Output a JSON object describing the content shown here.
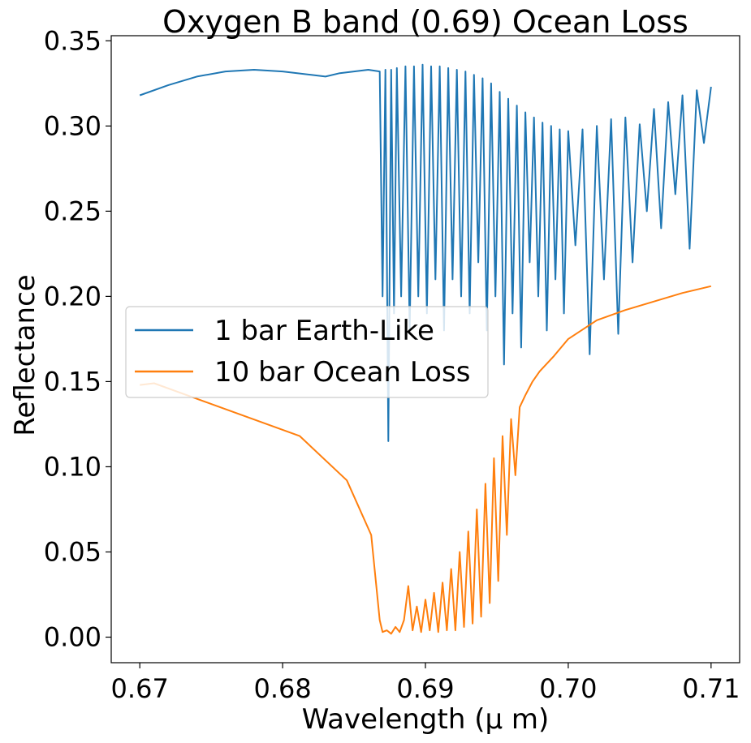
{
  "chart_data": {
    "type": "line",
    "title": "Oxygen B band (0.69) Ocean Loss",
    "xlabel": "Wavelength (μ m)",
    "ylabel": "Reflectance",
    "xlim": [
      0.668,
      0.712
    ],
    "ylim": [
      -0.015,
      0.353
    ],
    "xticks": [
      0.67,
      0.68,
      0.69,
      0.7,
      0.71
    ],
    "xtick_labels": [
      "0.67",
      "0.68",
      "0.69",
      "0.70",
      "0.71"
    ],
    "yticks": [
      0.0,
      0.05,
      0.1,
      0.15,
      0.2,
      0.25,
      0.3,
      0.35
    ],
    "ytick_labels": [
      "0.00",
      "0.05",
      "0.10",
      "0.15",
      "0.20",
      "0.25",
      "0.30",
      "0.35"
    ],
    "grid": false,
    "legend_position": "center-left",
    "series": [
      {
        "name": "1 bar Earth-Like",
        "color": "#1f77b4",
        "x": [
          0.67,
          0.672,
          0.674,
          0.676,
          0.678,
          0.68,
          0.682,
          0.683,
          0.684,
          0.685,
          0.686,
          0.6868,
          0.687,
          0.6872,
          0.6874,
          0.6876,
          0.6878,
          0.688,
          0.6883,
          0.6886,
          0.6889,
          0.6892,
          0.6895,
          0.6898,
          0.6901,
          0.6904,
          0.6907,
          0.691,
          0.6913,
          0.6916,
          0.6919,
          0.6922,
          0.6925,
          0.6928,
          0.6931,
          0.6934,
          0.6937,
          0.694,
          0.6943,
          0.6946,
          0.6949,
          0.6952,
          0.6955,
          0.6958,
          0.6961,
          0.6964,
          0.6967,
          0.697,
          0.6973,
          0.6976,
          0.6979,
          0.6982,
          0.6985,
          0.6988,
          0.6991,
          0.6994,
          0.6997,
          0.7,
          0.7005,
          0.701,
          0.7015,
          0.702,
          0.7025,
          0.703,
          0.7035,
          0.704,
          0.7045,
          0.705,
          0.7055,
          0.706,
          0.7065,
          0.707,
          0.7075,
          0.708,
          0.7085,
          0.709,
          0.7095,
          0.71
        ],
        "values": [
          0.318,
          0.324,
          0.329,
          0.332,
          0.333,
          0.332,
          0.33,
          0.329,
          0.331,
          0.332,
          0.333,
          0.332,
          0.2,
          0.333,
          0.115,
          0.333,
          0.19,
          0.334,
          0.2,
          0.335,
          0.18,
          0.335,
          0.2,
          0.336,
          0.19,
          0.335,
          0.21,
          0.335,
          0.18,
          0.334,
          0.21,
          0.333,
          0.2,
          0.332,
          0.19,
          0.33,
          0.22,
          0.328,
          0.18,
          0.325,
          0.2,
          0.32,
          0.16,
          0.316,
          0.19,
          0.312,
          0.17,
          0.308,
          0.22,
          0.305,
          0.2,
          0.302,
          0.18,
          0.3,
          0.21,
          0.298,
          0.19,
          0.297,
          0.23,
          0.298,
          0.166,
          0.3,
          0.21,
          0.304,
          0.178,
          0.305,
          0.22,
          0.301,
          0.25,
          0.31,
          0.24,
          0.314,
          0.26,
          0.318,
          0.228,
          0.321,
          0.29,
          0.323
        ]
      },
      {
        "name": "10 bar Ocean Loss",
        "color": "#ff7f0e",
        "x": [
          0.67,
          0.671,
          0.6812,
          0.6845,
          0.6862,
          0.6868,
          0.687,
          0.6873,
          0.6876,
          0.6879,
          0.6882,
          0.6885,
          0.6888,
          0.6891,
          0.6894,
          0.6897,
          0.69,
          0.6903,
          0.6906,
          0.6909,
          0.6912,
          0.6915,
          0.6918,
          0.6921,
          0.6924,
          0.6927,
          0.693,
          0.6933,
          0.6936,
          0.6939,
          0.6942,
          0.6945,
          0.6948,
          0.6951,
          0.6954,
          0.6957,
          0.696,
          0.6963,
          0.6966,
          0.697,
          0.6975,
          0.698,
          0.699,
          0.7,
          0.702,
          0.704,
          0.706,
          0.708,
          0.71
        ],
        "values": [
          0.148,
          0.149,
          0.118,
          0.092,
          0.06,
          0.01,
          0.003,
          0.004,
          0.002,
          0.006,
          0.003,
          0.01,
          0.03,
          0.004,
          0.018,
          0.003,
          0.022,
          0.004,
          0.026,
          0.003,
          0.032,
          0.004,
          0.04,
          0.004,
          0.05,
          0.006,
          0.062,
          0.008,
          0.075,
          0.012,
          0.09,
          0.02,
          0.105,
          0.033,
          0.118,
          0.06,
          0.128,
          0.095,
          0.135,
          0.142,
          0.15,
          0.156,
          0.165,
          0.175,
          0.186,
          0.192,
          0.197,
          0.202,
          0.206
        ]
      }
    ]
  }
}
